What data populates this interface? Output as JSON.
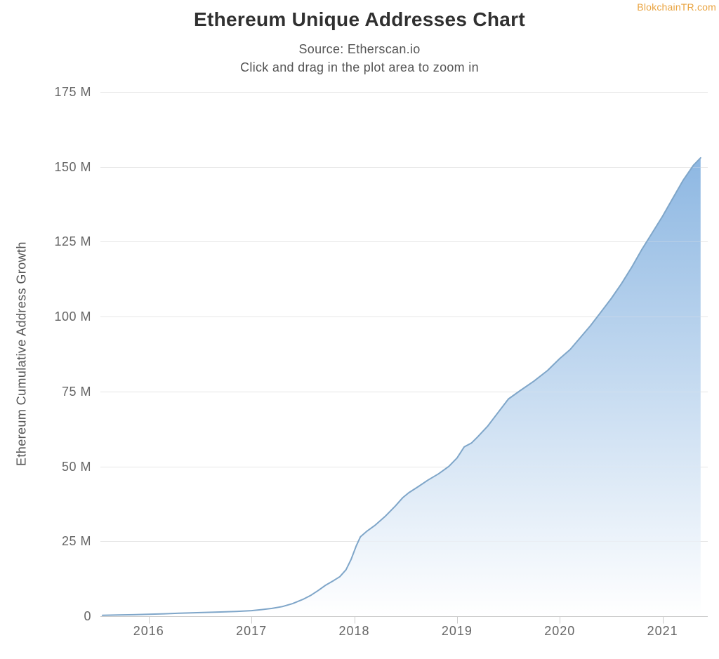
{
  "watermark": {
    "label": "BlokchainTR.com",
    "color": "#E9A33F"
  },
  "chart_data": {
    "type": "area",
    "title": "Ethereum Unique Addresses Chart",
    "subtitle": [
      "Source: Etherscan.io",
      "Click and drag in the plot area to zoom in"
    ],
    "xlabel": "",
    "ylabel": "Ethereum Cumulative Address Growth",
    "xlim": [
      2015.53,
      2021.44
    ],
    "ylim": [
      0,
      175
    ],
    "grid": "horizontal",
    "legend": "none",
    "x_ticks": {
      "values": [
        2016,
        2017,
        2018,
        2019,
        2020,
        2021
      ],
      "labels": [
        "2016",
        "2017",
        "2018",
        "2019",
        "2020",
        "2021"
      ]
    },
    "y_ticks": {
      "values": [
        0,
        25,
        50,
        75,
        100,
        125,
        150,
        175
      ],
      "labels": [
        "0",
        "25 M",
        "50 M",
        "75 M",
        "100 M",
        "125 M",
        "150 M",
        "175 M"
      ]
    },
    "series": [
      {
        "name": "Ethereum Cumulative Address Growth",
        "x_unit": "year",
        "y_unit": "millions of addresses",
        "points": [
          [
            2015.55,
            0.3
          ],
          [
            2015.7,
            0.4
          ],
          [
            2015.85,
            0.5
          ],
          [
            2016.0,
            0.65
          ],
          [
            2016.15,
            0.8
          ],
          [
            2016.3,
            1.0
          ],
          [
            2016.5,
            1.2
          ],
          [
            2016.7,
            1.4
          ],
          [
            2016.85,
            1.6
          ],
          [
            2017.0,
            1.85
          ],
          [
            2017.1,
            2.2
          ],
          [
            2017.2,
            2.6
          ],
          [
            2017.3,
            3.2
          ],
          [
            2017.4,
            4.2
          ],
          [
            2017.5,
            5.6
          ],
          [
            2017.58,
            7.0
          ],
          [
            2017.65,
            8.6
          ],
          [
            2017.72,
            10.3
          ],
          [
            2017.8,
            11.9
          ],
          [
            2017.86,
            13.2
          ],
          [
            2017.92,
            15.5
          ],
          [
            2017.97,
            19.0
          ],
          [
            2018.02,
            23.5
          ],
          [
            2018.06,
            26.5
          ],
          [
            2018.12,
            28.3
          ],
          [
            2018.2,
            30.3
          ],
          [
            2018.3,
            33.3
          ],
          [
            2018.4,
            36.8
          ],
          [
            2018.47,
            39.5
          ],
          [
            2018.53,
            41.2
          ],
          [
            2018.62,
            43.2
          ],
          [
            2018.72,
            45.5
          ],
          [
            2018.82,
            47.5
          ],
          [
            2018.92,
            50.0
          ],
          [
            2019.0,
            52.8
          ],
          [
            2019.07,
            56.5
          ],
          [
            2019.14,
            57.8
          ],
          [
            2019.2,
            59.8
          ],
          [
            2019.3,
            63.5
          ],
          [
            2019.4,
            68.0
          ],
          [
            2019.5,
            72.5
          ],
          [
            2019.61,
            75.2
          ],
          [
            2019.75,
            78.5
          ],
          [
            2019.88,
            82.0
          ],
          [
            2020.0,
            86.0
          ],
          [
            2020.1,
            89.0
          ],
          [
            2020.2,
            93.0
          ],
          [
            2020.3,
            97.0
          ],
          [
            2020.4,
            101.5
          ],
          [
            2020.5,
            106.0
          ],
          [
            2020.6,
            111.0
          ],
          [
            2020.7,
            116.5
          ],
          [
            2020.8,
            122.5
          ],
          [
            2020.9,
            128.0
          ],
          [
            2021.0,
            133.5
          ],
          [
            2021.1,
            139.5
          ],
          [
            2021.2,
            145.5
          ],
          [
            2021.3,
            150.5
          ],
          [
            2021.37,
            153.0
          ]
        ]
      }
    ],
    "colors": {
      "line": "#7FA6C9",
      "area_gradient_top": "#7DADDE",
      "area_gradient_bottom": "#FFFFFF",
      "grid": "#E6E6E6",
      "axis": "#CCCCCC",
      "tick_label": "#666666",
      "title": "#303030",
      "subtitle": "#555555"
    }
  }
}
